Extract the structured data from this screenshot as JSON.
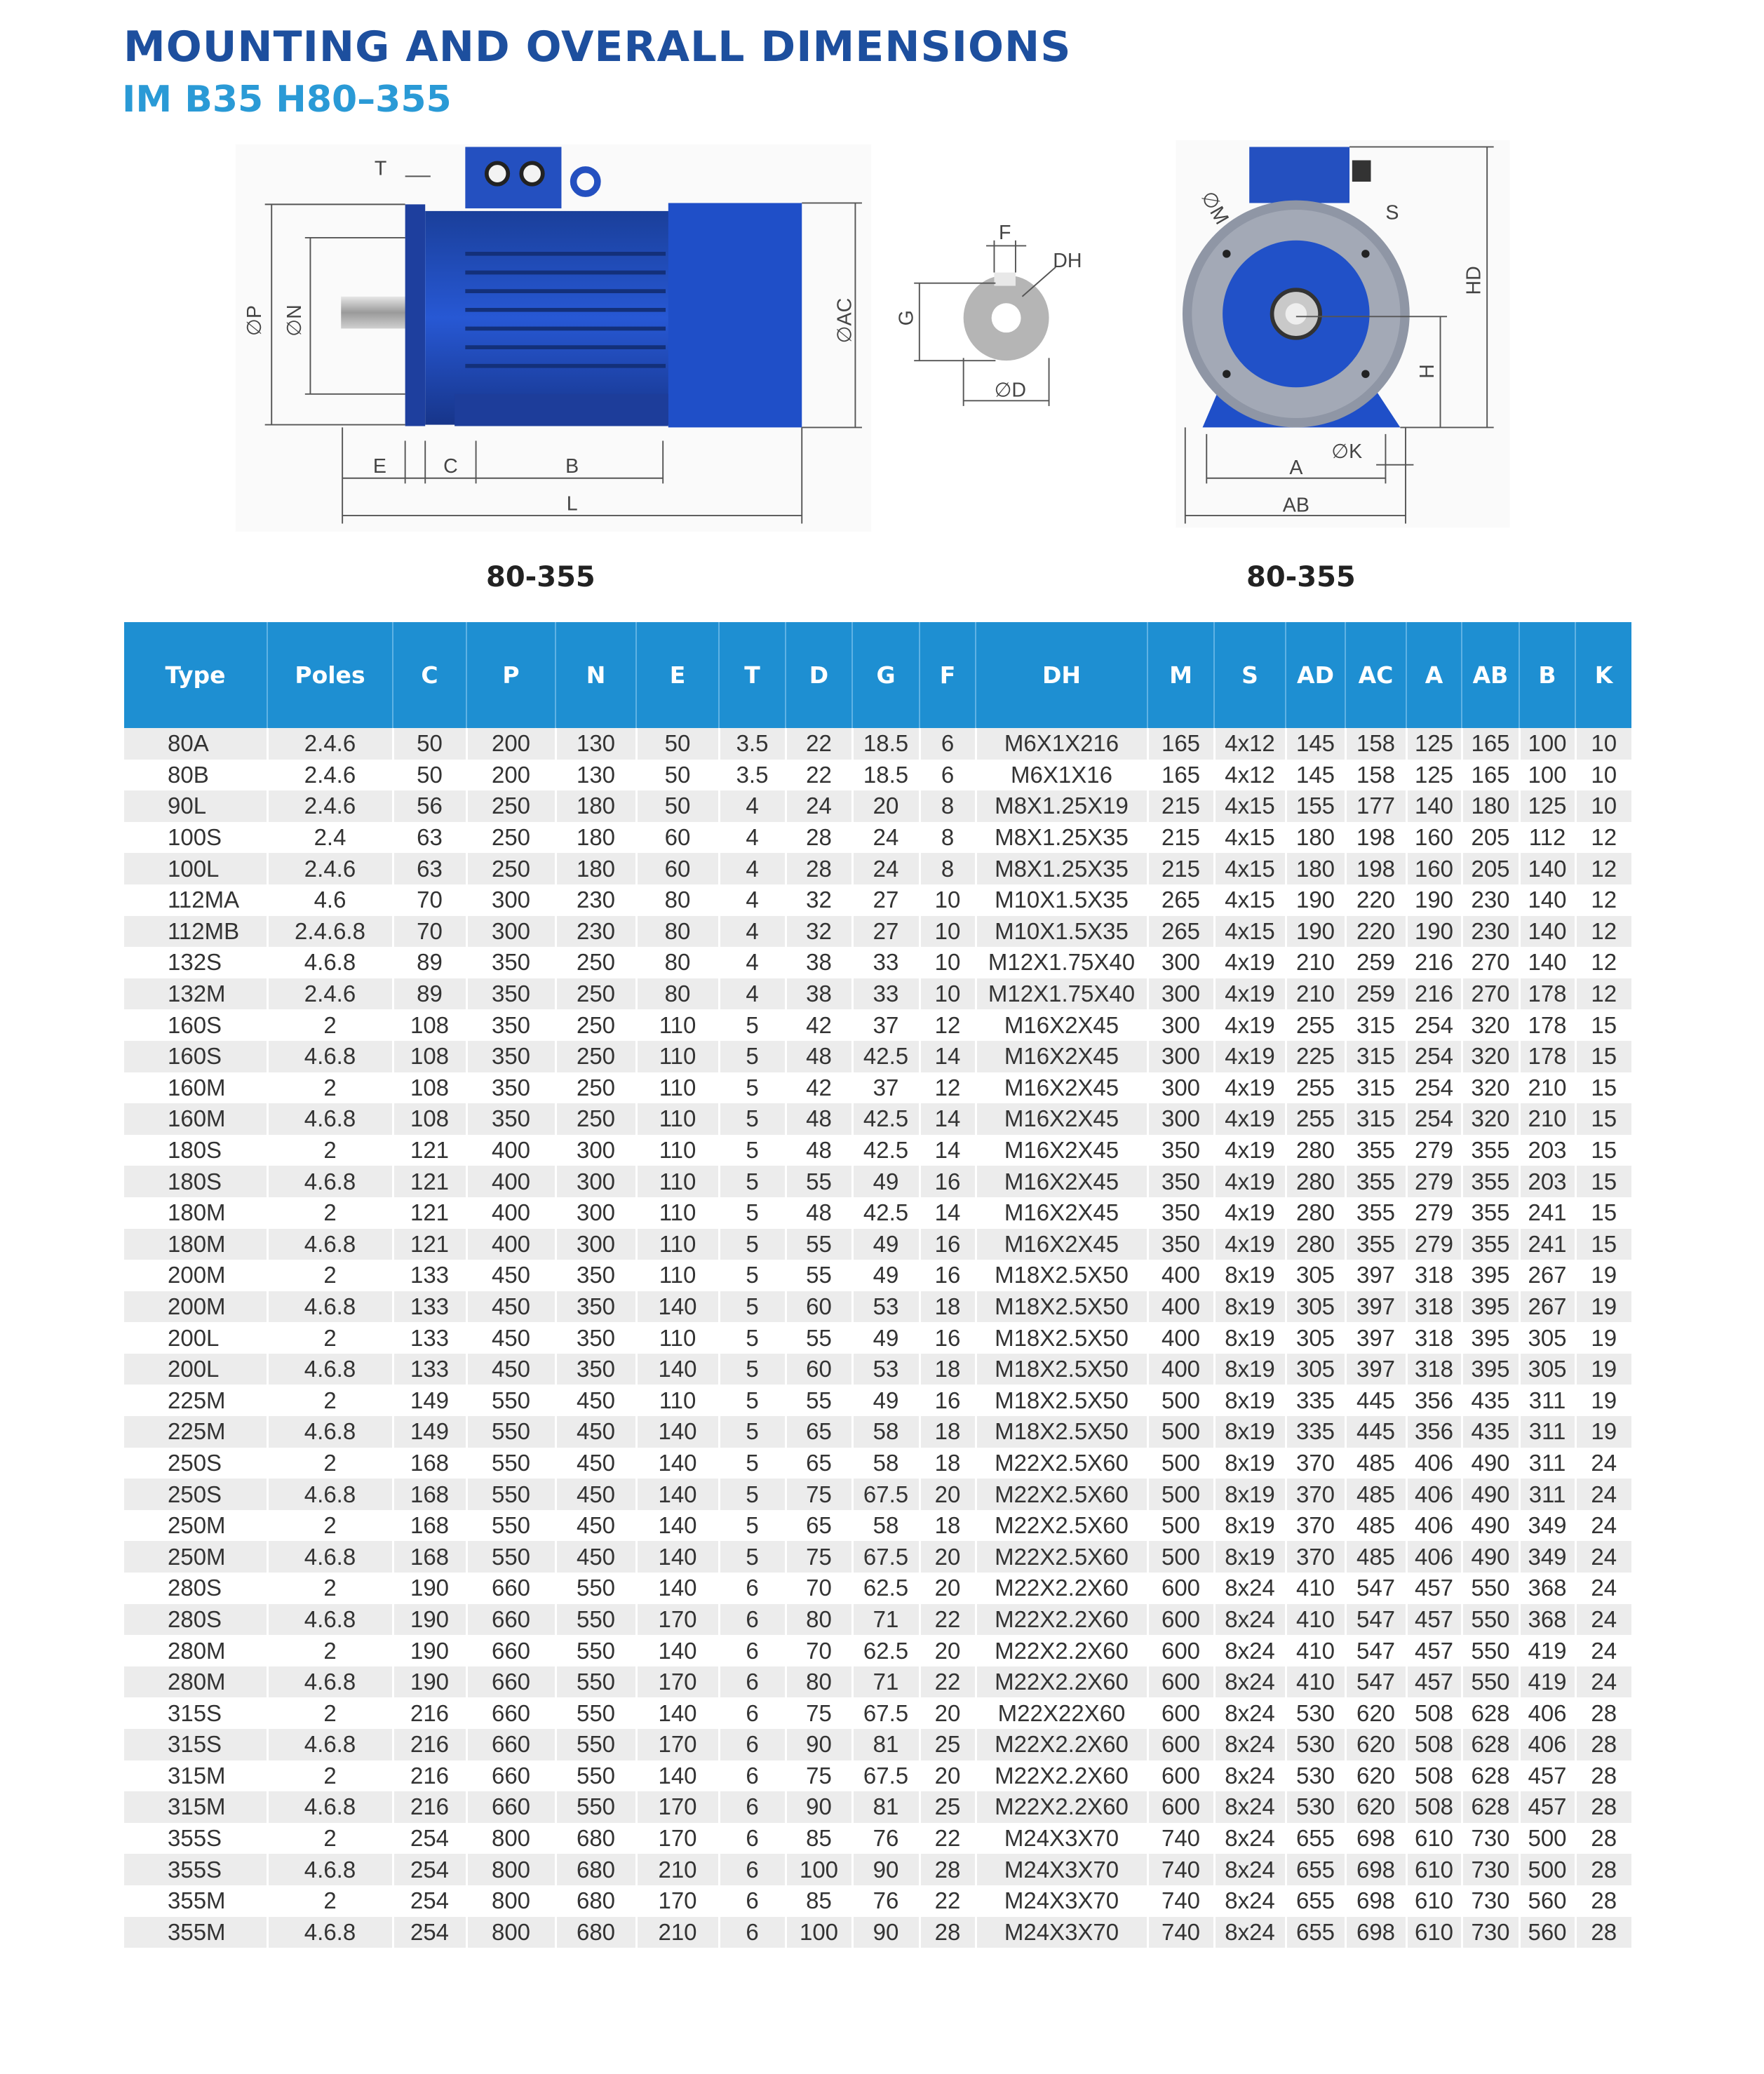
{
  "header": {
    "title": "MOUNTING AND OVERALL DIMENSIONS",
    "subtitle": "IM B35  H80–355"
  },
  "diagram": {
    "side_view_label": "80-355",
    "front_view_label": "80-355",
    "motor_color": "#1f4fc8",
    "dimension_labels": {
      "T": "T",
      "P": "∅P",
      "N": "∅N",
      "AC": "∅AC",
      "E": "E",
      "C": "C",
      "B": "B",
      "L": "L",
      "F": "F",
      "DH": "DH",
      "G": "G",
      "D": "∅D",
      "M": "∅M",
      "S": "S",
      "HD": "HD",
      "H": "H",
      "K": "∅K",
      "A": "A",
      "AB": "AB"
    }
  },
  "table": {
    "header_color": "#1e8fd2",
    "columns": [
      "Type",
      "Poles",
      "C",
      "P",
      "N",
      "E",
      "T",
      "D",
      "G",
      "F",
      "DH",
      "M",
      "S",
      "AD",
      "AC",
      "A",
      "AB",
      "B",
      "K"
    ],
    "rows": [
      [
        "80A",
        "2.4.6",
        "50",
        "200",
        "130",
        "50",
        "3.5",
        "22",
        "18.5",
        "6",
        "M6X1X216",
        "165",
        "4x12",
        "145",
        "158",
        "125",
        "165",
        "100",
        "10"
      ],
      [
        "80B",
        "2.4.6",
        "50",
        "200",
        "130",
        "50",
        "3.5",
        "22",
        "18.5",
        "6",
        "M6X1X16",
        "165",
        "4x12",
        "145",
        "158",
        "125",
        "165",
        "100",
        "10"
      ],
      [
        "90L",
        "2.4.6",
        "56",
        "250",
        "180",
        "50",
        "4",
        "24",
        "20",
        "8",
        "M8X1.25X19",
        "215",
        "4x15",
        "155",
        "177",
        "140",
        "180",
        "125",
        "10"
      ],
      [
        "100S",
        "2.4",
        "63",
        "250",
        "180",
        "60",
        "4",
        "28",
        "24",
        "8",
        "M8X1.25X35",
        "215",
        "4x15",
        "180",
        "198",
        "160",
        "205",
        "112",
        "12"
      ],
      [
        "100L",
        "2.4.6",
        "63",
        "250",
        "180",
        "60",
        "4",
        "28",
        "24",
        "8",
        "M8X1.25X35",
        "215",
        "4x15",
        "180",
        "198",
        "160",
        "205",
        "140",
        "12"
      ],
      [
        "112MA",
        "4.6",
        "70",
        "300",
        "230",
        "80",
        "4",
        "32",
        "27",
        "10",
        "M10X1.5X35",
        "265",
        "4x15",
        "190",
        "220",
        "190",
        "230",
        "140",
        "12"
      ],
      [
        "112MB",
        "2.4.6.8",
        "70",
        "300",
        "230",
        "80",
        "4",
        "32",
        "27",
        "10",
        "M10X1.5X35",
        "265",
        "4x15",
        "190",
        "220",
        "190",
        "230",
        "140",
        "12"
      ],
      [
        "132S",
        "4.6.8",
        "89",
        "350",
        "250",
        "80",
        "4",
        "38",
        "33",
        "10",
        "M12X1.75X40",
        "300",
        "4x19",
        "210",
        "259",
        "216",
        "270",
        "140",
        "12"
      ],
      [
        "132M",
        "2.4.6",
        "89",
        "350",
        "250",
        "80",
        "4",
        "38",
        "33",
        "10",
        "M12X1.75X40",
        "300",
        "4x19",
        "210",
        "259",
        "216",
        "270",
        "178",
        "12"
      ],
      [
        "160S",
        "2",
        "108",
        "350",
        "250",
        "110",
        "5",
        "42",
        "37",
        "12",
        "M16X2X45",
        "300",
        "4x19",
        "255",
        "315",
        "254",
        "320",
        "178",
        "15"
      ],
      [
        "160S",
        "4.6.8",
        "108",
        "350",
        "250",
        "110",
        "5",
        "48",
        "42.5",
        "14",
        "M16X2X45",
        "300",
        "4x19",
        "225",
        "315",
        "254",
        "320",
        "178",
        "15"
      ],
      [
        "160M",
        "2",
        "108",
        "350",
        "250",
        "110",
        "5",
        "42",
        "37",
        "12",
        "M16X2X45",
        "300",
        "4x19",
        "255",
        "315",
        "254",
        "320",
        "210",
        "15"
      ],
      [
        "160M",
        "4.6.8",
        "108",
        "350",
        "250",
        "110",
        "5",
        "48",
        "42.5",
        "14",
        "M16X2X45",
        "300",
        "4x19",
        "255",
        "315",
        "254",
        "320",
        "210",
        "15"
      ],
      [
        "180S",
        "2",
        "121",
        "400",
        "300",
        "110",
        "5",
        "48",
        "42.5",
        "14",
        "M16X2X45",
        "350",
        "4x19",
        "280",
        "355",
        "279",
        "355",
        "203",
        "15"
      ],
      [
        "180S",
        "4.6.8",
        "121",
        "400",
        "300",
        "110",
        "5",
        "55",
        "49",
        "16",
        "M16X2X45",
        "350",
        "4x19",
        "280",
        "355",
        "279",
        "355",
        "203",
        "15"
      ],
      [
        "180M",
        "2",
        "121",
        "400",
        "300",
        "110",
        "5",
        "48",
        "42.5",
        "14",
        "M16X2X45",
        "350",
        "4x19",
        "280",
        "355",
        "279",
        "355",
        "241",
        "15"
      ],
      [
        "180M",
        "4.6.8",
        "121",
        "400",
        "300",
        "110",
        "5",
        "55",
        "49",
        "16",
        "M16X2X45",
        "350",
        "4x19",
        "280",
        "355",
        "279",
        "355",
        "241",
        "15"
      ],
      [
        "200M",
        "2",
        "133",
        "450",
        "350",
        "110",
        "5",
        "55",
        "49",
        "16",
        "M18X2.5X50",
        "400",
        "8x19",
        "305",
        "397",
        "318",
        "395",
        "267",
        "19"
      ],
      [
        "200M",
        "4.6.8",
        "133",
        "450",
        "350",
        "140",
        "5",
        "60",
        "53",
        "18",
        "M18X2.5X50",
        "400",
        "8x19",
        "305",
        "397",
        "318",
        "395",
        "267",
        "19"
      ],
      [
        "200L",
        "2",
        "133",
        "450",
        "350",
        "110",
        "5",
        "55",
        "49",
        "16",
        "M18X2.5X50",
        "400",
        "8x19",
        "305",
        "397",
        "318",
        "395",
        "305",
        "19"
      ],
      [
        "200L",
        "4.6.8",
        "133",
        "450",
        "350",
        "140",
        "5",
        "60",
        "53",
        "18",
        "M18X2.5X50",
        "400",
        "8x19",
        "305",
        "397",
        "318",
        "395",
        "305",
        "19"
      ],
      [
        "225M",
        "2",
        "149",
        "550",
        "450",
        "110",
        "5",
        "55",
        "49",
        "16",
        "M18X2.5X50",
        "500",
        "8x19",
        "335",
        "445",
        "356",
        "435",
        "311",
        "19"
      ],
      [
        "225M",
        "4.6.8",
        "149",
        "550",
        "450",
        "140",
        "5",
        "65",
        "58",
        "18",
        "M18X2.5X50",
        "500",
        "8x19",
        "335",
        "445",
        "356",
        "435",
        "311",
        "19"
      ],
      [
        "250S",
        "2",
        "168",
        "550",
        "450",
        "140",
        "5",
        "65",
        "58",
        "18",
        "M22X2.5X60",
        "500",
        "8x19",
        "370",
        "485",
        "406",
        "490",
        "311",
        "24"
      ],
      [
        "250S",
        "4.6.8",
        "168",
        "550",
        "450",
        "140",
        "5",
        "75",
        "67.5",
        "20",
        "M22X2.5X60",
        "500",
        "8x19",
        "370",
        "485",
        "406",
        "490",
        "311",
        "24"
      ],
      [
        "250M",
        "2",
        "168",
        "550",
        "450",
        "140",
        "5",
        "65",
        "58",
        "18",
        "M22X2.5X60",
        "500",
        "8x19",
        "370",
        "485",
        "406",
        "490",
        "349",
        "24"
      ],
      [
        "250M",
        "4.6.8",
        "168",
        "550",
        "450",
        "140",
        "5",
        "75",
        "67.5",
        "20",
        "M22X2.5X60",
        "500",
        "8x19",
        "370",
        "485",
        "406",
        "490",
        "349",
        "24"
      ],
      [
        "280S",
        "2",
        "190",
        "660",
        "550",
        "140",
        "6",
        "70",
        "62.5",
        "20",
        "M22X2.2X60",
        "600",
        "8x24",
        "410",
        "547",
        "457",
        "550",
        "368",
        "24"
      ],
      [
        "280S",
        "4.6.8",
        "190",
        "660",
        "550",
        "170",
        "6",
        "80",
        "71",
        "22",
        "M22X2.2X60",
        "600",
        "8x24",
        "410",
        "547",
        "457",
        "550",
        "368",
        "24"
      ],
      [
        "280M",
        "2",
        "190",
        "660",
        "550",
        "140",
        "6",
        "70",
        "62.5",
        "20",
        "M22X2.2X60",
        "600",
        "8x24",
        "410",
        "547",
        "457",
        "550",
        "419",
        "24"
      ],
      [
        "280M",
        "4.6.8",
        "190",
        "660",
        "550",
        "170",
        "6",
        "80",
        "71",
        "22",
        "M22X2.2X60",
        "600",
        "8x24",
        "410",
        "547",
        "457",
        "550",
        "419",
        "24"
      ],
      [
        "315S",
        "2",
        "216",
        "660",
        "550",
        "140",
        "6",
        "75",
        "67.5",
        "20",
        "M22X22X60",
        "600",
        "8x24",
        "530",
        "620",
        "508",
        "628",
        "406",
        "28"
      ],
      [
        "315S",
        "4.6.8",
        "216",
        "660",
        "550",
        "170",
        "6",
        "90",
        "81",
        "25",
        "M22X2.2X60",
        "600",
        "8x24",
        "530",
        "620",
        "508",
        "628",
        "406",
        "28"
      ],
      [
        "315M",
        "2",
        "216",
        "660",
        "550",
        "140",
        "6",
        "75",
        "67.5",
        "20",
        "M22X2.2X60",
        "600",
        "8x24",
        "530",
        "620",
        "508",
        "628",
        "457",
        "28"
      ],
      [
        "315M",
        "4.6.8",
        "216",
        "660",
        "550",
        "170",
        "6",
        "90",
        "81",
        "25",
        "M22X2.2X60",
        "600",
        "8x24",
        "530",
        "620",
        "508",
        "628",
        "457",
        "28"
      ],
      [
        "355S",
        "2",
        "254",
        "800",
        "680",
        "170",
        "6",
        "85",
        "76",
        "22",
        "M24X3X70",
        "740",
        "8x24",
        "655",
        "698",
        "610",
        "730",
        "500",
        "28"
      ],
      [
        "355S",
        "4.6.8",
        "254",
        "800",
        "680",
        "210",
        "6",
        "100",
        "90",
        "28",
        "M24X3X70",
        "740",
        "8x24",
        "655",
        "698",
        "610",
        "730",
        "500",
        "28"
      ],
      [
        "355M",
        "2",
        "254",
        "800",
        "680",
        "170",
        "6",
        "85",
        "76",
        "22",
        "M24X3X70",
        "740",
        "8x24",
        "655",
        "698",
        "610",
        "730",
        "560",
        "28"
      ],
      [
        "355M",
        "4.6.8",
        "254",
        "800",
        "680",
        "210",
        "6",
        "100",
        "90",
        "28",
        "M24X3X70",
        "740",
        "8x24",
        "655",
        "698",
        "610",
        "730",
        "560",
        "28"
      ]
    ]
  }
}
